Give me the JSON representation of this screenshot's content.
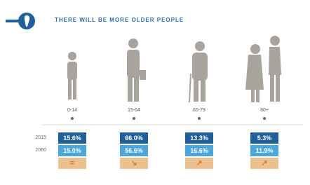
{
  "header": {
    "title": "THERE WILL BE MORE OLDER PEOPLE"
  },
  "years": [
    "2015",
    "2060"
  ],
  "groups": [
    {
      "age": "0-14",
      "values": [
        "15.6%",
        "15.0%"
      ],
      "trend": "="
    },
    {
      "age": "15-64",
      "values": [
        "66.0%",
        "56.6%"
      ],
      "trend": "↘"
    },
    {
      "age": "65-79",
      "values": [
        "13.3%",
        "16.6%"
      ],
      "trend": "↗"
    },
    {
      "age": "80+",
      "values": [
        "5.3%",
        "11.9%"
      ],
      "trend": "↗"
    }
  ]
}
